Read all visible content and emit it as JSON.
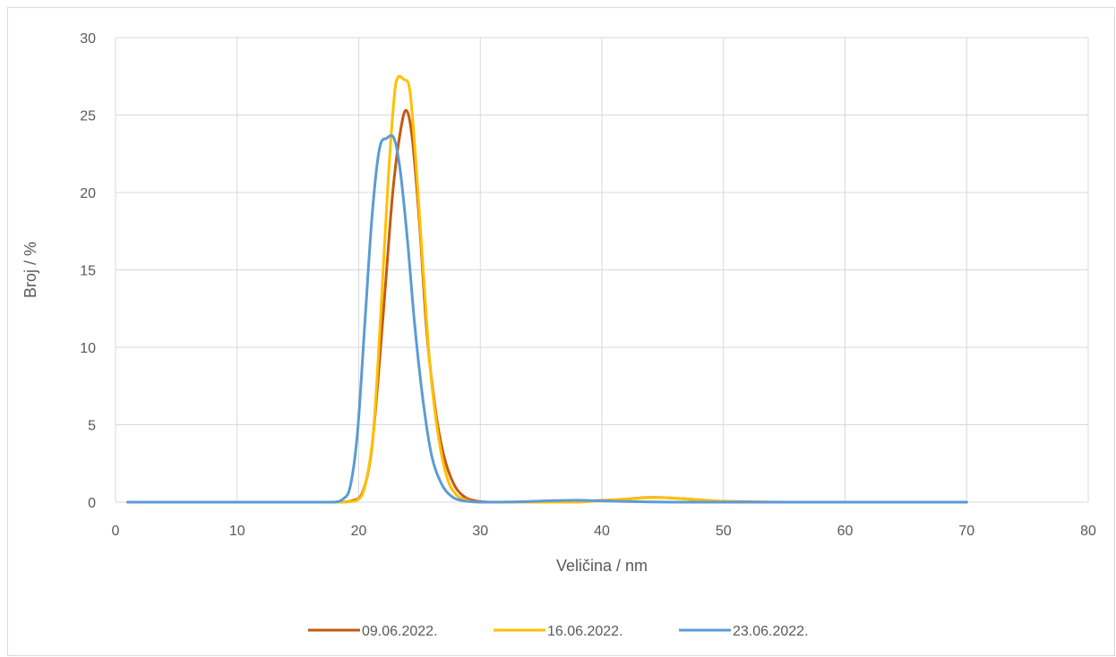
{
  "chart_data": {
    "type": "line",
    "title": "",
    "xlabel": "Veličina /  nm",
    "ylabel": "Broj / %",
    "xlim": [
      0,
      80
    ],
    "ylim": [
      0,
      30
    ],
    "xticks": [
      0,
      10,
      20,
      30,
      40,
      50,
      60,
      70,
      80
    ],
    "yticks": [
      0,
      5,
      10,
      15,
      20,
      25,
      30
    ],
    "grid": "on",
    "legend_position": "bottom",
    "series": [
      {
        "name": "09.06.2022.",
        "color": "#c55a11",
        "points": [
          [
            1,
            0
          ],
          [
            10,
            0
          ],
          [
            17,
            0
          ],
          [
            18.5,
            0
          ],
          [
            19.5,
            0.1
          ],
          [
            20.3,
            0.6
          ],
          [
            21,
            3
          ],
          [
            21.6,
            8
          ],
          [
            22.2,
            14
          ],
          [
            22.8,
            20
          ],
          [
            23.4,
            23.8
          ],
          [
            23.9,
            25.3
          ],
          [
            24.4,
            23.5
          ],
          [
            25,
            18
          ],
          [
            25.6,
            11
          ],
          [
            26.3,
            6
          ],
          [
            27,
            3
          ],
          [
            27.8,
            1.2
          ],
          [
            28.6,
            0.4
          ],
          [
            29.5,
            0.1
          ],
          [
            31,
            0
          ],
          [
            35,
            0
          ],
          [
            38,
            0.05
          ],
          [
            41,
            0.15
          ],
          [
            44,
            0.3
          ],
          [
            46,
            0.25
          ],
          [
            48,
            0.15
          ],
          [
            50,
            0.05
          ],
          [
            55,
            0
          ],
          [
            60,
            0
          ],
          [
            70,
            0
          ]
        ]
      },
      {
        "name": "16.06.2022.",
        "color": "#ffc000",
        "points": [
          [
            1,
            0
          ],
          [
            10,
            0
          ],
          [
            17,
            0
          ],
          [
            18.5,
            0
          ],
          [
            19.8,
            0.1
          ],
          [
            20.5,
            1
          ],
          [
            21.2,
            4.5
          ],
          [
            21.8,
            12
          ],
          [
            22.4,
            20.5
          ],
          [
            22.9,
            26
          ],
          [
            23.2,
            27.4
          ],
          [
            23.7,
            27.3
          ],
          [
            24.2,
            26.6
          ],
          [
            24.7,
            22
          ],
          [
            25.3,
            15
          ],
          [
            25.9,
            8.5
          ],
          [
            26.6,
            4
          ],
          [
            27.3,
            1.5
          ],
          [
            28,
            0.5
          ],
          [
            28.8,
            0.15
          ],
          [
            30,
            0
          ],
          [
            35,
            0
          ],
          [
            38,
            0
          ],
          [
            41,
            0.15
          ],
          [
            44.5,
            0.3
          ],
          [
            47,
            0.2
          ],
          [
            49,
            0.1
          ],
          [
            51,
            0.02
          ],
          [
            55,
            0
          ],
          [
            60,
            0
          ],
          [
            70,
            0
          ]
        ]
      },
      {
        "name": "23.06.2022.",
        "color": "#5b9bd5",
        "points": [
          [
            1,
            0
          ],
          [
            10,
            0
          ],
          [
            17,
            0
          ],
          [
            18,
            0
          ],
          [
            18.7,
            0.2
          ],
          [
            19.3,
            1
          ],
          [
            19.9,
            4.5
          ],
          [
            20.5,
            11.5
          ],
          [
            21.1,
            18.5
          ],
          [
            21.7,
            22.8
          ],
          [
            22.3,
            23.5
          ],
          [
            22.9,
            23.5
          ],
          [
            23.4,
            21.5
          ],
          [
            24,
            17
          ],
          [
            24.6,
            11.5
          ],
          [
            25.3,
            6.5
          ],
          [
            26,
            3
          ],
          [
            26.8,
            1.2
          ],
          [
            27.6,
            0.4
          ],
          [
            28.5,
            0.1
          ],
          [
            30,
            0
          ],
          [
            33,
            0.02
          ],
          [
            36,
            0.1
          ],
          [
            38,
            0.12
          ],
          [
            40,
            0.08
          ],
          [
            43,
            0.03
          ],
          [
            46,
            0
          ],
          [
            50,
            0
          ],
          [
            60,
            0
          ],
          [
            70,
            0
          ]
        ]
      }
    ]
  }
}
